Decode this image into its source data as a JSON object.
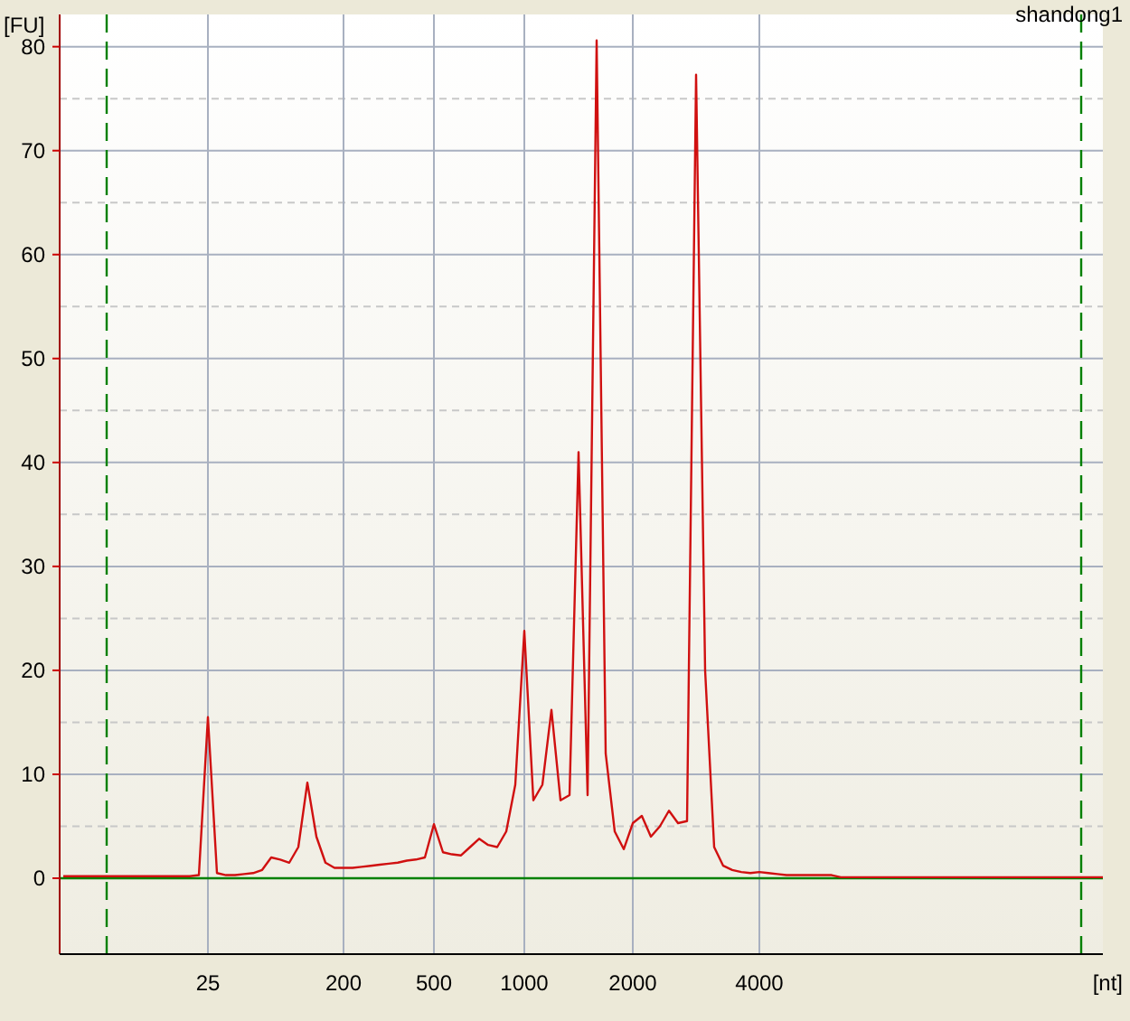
{
  "chart_data": {
    "type": "line",
    "title": "shandong1",
    "xlabel": "[nt]",
    "ylabel": "[FU]",
    "categories": [
      null,
      null,
      null,
      null,
      null,
      null,
      null,
      null,
      null,
      null,
      null,
      null,
      null,
      null,
      null,
      null,
      "25",
      null,
      null,
      null,
      null,
      null,
      null,
      null,
      null,
      null,
      null,
      null,
      null,
      null,
      null,
      "200",
      null,
      null,
      null,
      null,
      null,
      null,
      null,
      null,
      null,
      "500",
      null,
      null,
      null,
      null,
      null,
      null,
      null,
      null,
      null,
      "1000",
      null,
      null,
      null,
      null,
      null,
      null,
      null,
      null,
      null,
      null,
      null,
      "2000",
      null,
      null,
      null,
      null,
      null,
      null,
      null,
      null,
      null,
      null,
      null,
      null,
      null,
      "4000",
      null,
      null,
      null,
      null,
      null,
      null,
      null,
      null,
      null,
      null,
      null,
      null,
      null,
      null,
      null,
      null,
      null,
      null,
      null,
      null,
      null,
      null,
      null,
      null,
      null,
      null,
      null,
      null,
      null,
      null,
      null,
      null,
      null,
      null,
      null,
      null,
      null,
      null
    ],
    "series": [
      {
        "color": "#d01010",
        "values": [
          0.2,
          0.2,
          0.2,
          0.2,
          0.2,
          0.2,
          0.2,
          0.2,
          0.2,
          0.2,
          0.2,
          0.2,
          0.2,
          0.2,
          0.2,
          0.3,
          15.5,
          0.5,
          0.3,
          0.3,
          0.4,
          0.5,
          0.8,
          2.0,
          1.8,
          1.5,
          3.0,
          9.2,
          4.0,
          1.5,
          1.0,
          1.0,
          1.0,
          1.1,
          1.2,
          1.3,
          1.4,
          1.5,
          1.7,
          1.8,
          2.0,
          5.2,
          2.5,
          2.3,
          2.2,
          3.0,
          3.8,
          3.2,
          3.0,
          4.5,
          9.0,
          23.8,
          7.5,
          9.0,
          16.2,
          7.5,
          8.0,
          41.0,
          8.0,
          80.6,
          12.0,
          4.5,
          2.8,
          5.3,
          6.0,
          4.0,
          5.0,
          6.5,
          5.3,
          5.5,
          77.3,
          20.0,
          3.0,
          1.2,
          0.8,
          0.6,
          0.5,
          0.6,
          0.5,
          0.4,
          0.3,
          0.3,
          0.3,
          0.3,
          0.3,
          0.3,
          0.1,
          0.1,
          0.1,
          0.1,
          0.1,
          0.1,
          0.1,
          0.1,
          0.1,
          0.1,
          0.1,
          0.1,
          0.1,
          0.1,
          0.1,
          0.1,
          0.1,
          0.1,
          0.1,
          0.1,
          0.1,
          0.1,
          0.1,
          0.1,
          0.1,
          0.1,
          0.1,
          0.1,
          0.1,
          0.1
        ]
      }
    ],
    "ylim": [
      -7.3,
      83.1
    ],
    "yticks": [
      0,
      10,
      20,
      30,
      40,
      50,
      60,
      70,
      80
    ],
    "grid": true,
    "ref_lines": [
      {
        "axis": "y",
        "value": 0,
        "color": "#008000",
        "line_style": "solid"
      }
    ]
  }
}
